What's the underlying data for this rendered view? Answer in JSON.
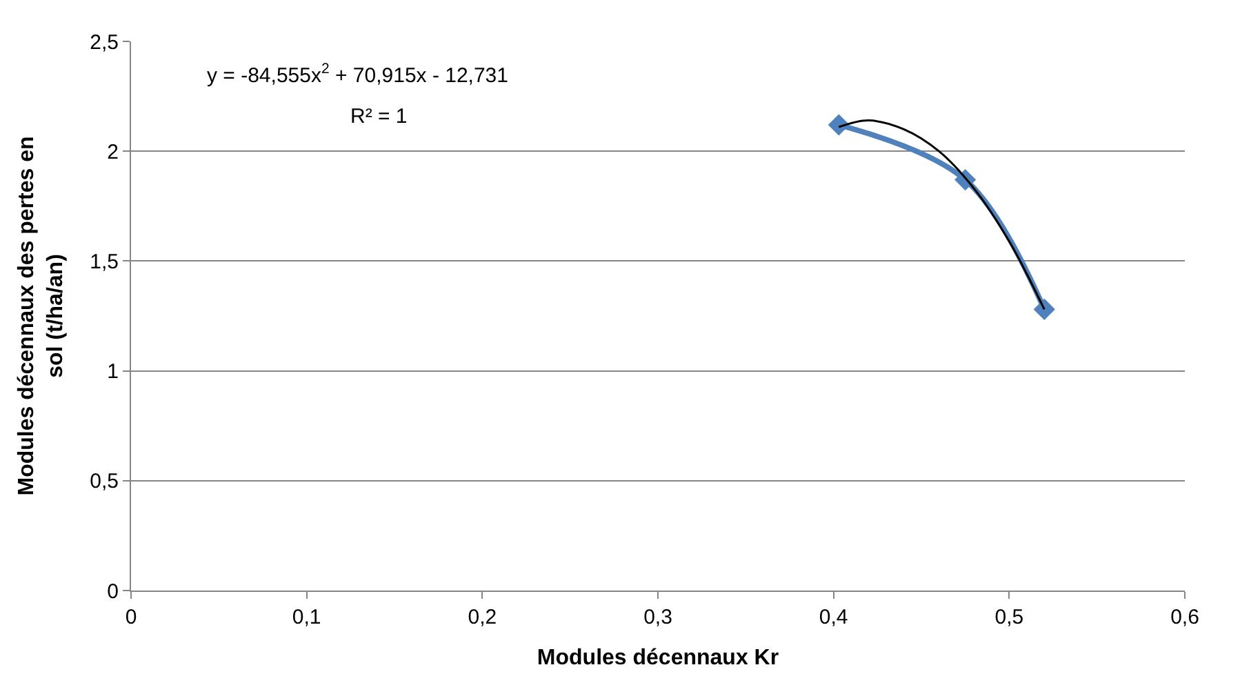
{
  "chart_data": {
    "type": "line",
    "xlabel": "Modules décennaux Kr",
    "ylabel": "Modules décennaux des pertes en sol (t/ha/an)",
    "series": [
      {
        "color": "#4f81bd",
        "marker": "diamond",
        "x": [
          0.403,
          0.475,
          0.52
        ],
        "values": [
          2.12,
          1.87,
          1.28
        ]
      },
      {
        "color": "#000000",
        "marker": "none",
        "x": [
          0.403,
          0.42,
          0.44,
          0.46,
          0.48,
          0.5,
          0.52
        ],
        "values": [
          2.11,
          2.14,
          2.1,
          2.0,
          1.83,
          1.59,
          1.28
        ]
      }
    ],
    "xlim": [
      0,
      0.6
    ],
    "xticks": [
      0,
      {
        "value": 0.1,
        "label": "0,1"
      },
      {
        "value": 0.2,
        "label": "0,2"
      },
      {
        "value": 0.3,
        "label": "0,3"
      },
      {
        "value": 0.4,
        "label": "0,4"
      },
      {
        "value": 0.5,
        "label": "0,5"
      },
      {
        "value": 0.6,
        "label": "0,6"
      }
    ],
    "ylim": [
      0,
      2.5
    ],
    "yticks": [
      0,
      {
        "value": 0.5,
        "label": "0,5"
      },
      1,
      {
        "value": 1.5,
        "label": "1,5"
      },
      2,
      {
        "value": 2.5,
        "label": "2,5"
      }
    ],
    "grid": "y",
    "annotations": [
      "y = -84,555x$^{2}$ + 70,915x - 12,731",
      "R² = 1"
    ]
  }
}
